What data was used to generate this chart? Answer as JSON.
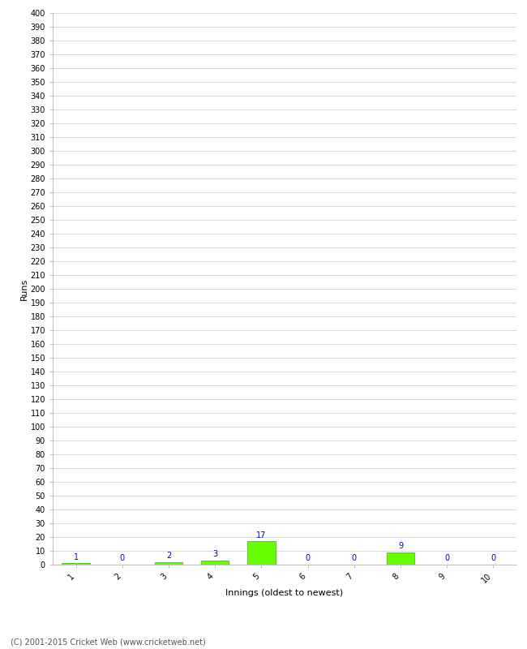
{
  "xlabel": "Innings (oldest to newest)",
  "ylabel": "Runs",
  "categories": [
    "1",
    "2",
    "3",
    "4",
    "5",
    "6",
    "7",
    "8",
    "9",
    "10"
  ],
  "values": [
    1,
    0,
    2,
    3,
    17,
    0,
    0,
    9,
    0,
    0
  ],
  "bar_color": "#66ff00",
  "bar_edge_color": "#33bb00",
  "ylim": [
    0,
    400
  ],
  "background_color": "#ffffff",
  "grid_color": "#cccccc",
  "label_color": "#0000cc",
  "footer": "(C) 2001-2015 Cricket Web (www.cricketweb.net)",
  "ylabel_fontsize": 8,
  "xlabel_fontsize": 8,
  "tick_fontsize": 7,
  "label_fontsize": 7,
  "footer_fontsize": 7
}
